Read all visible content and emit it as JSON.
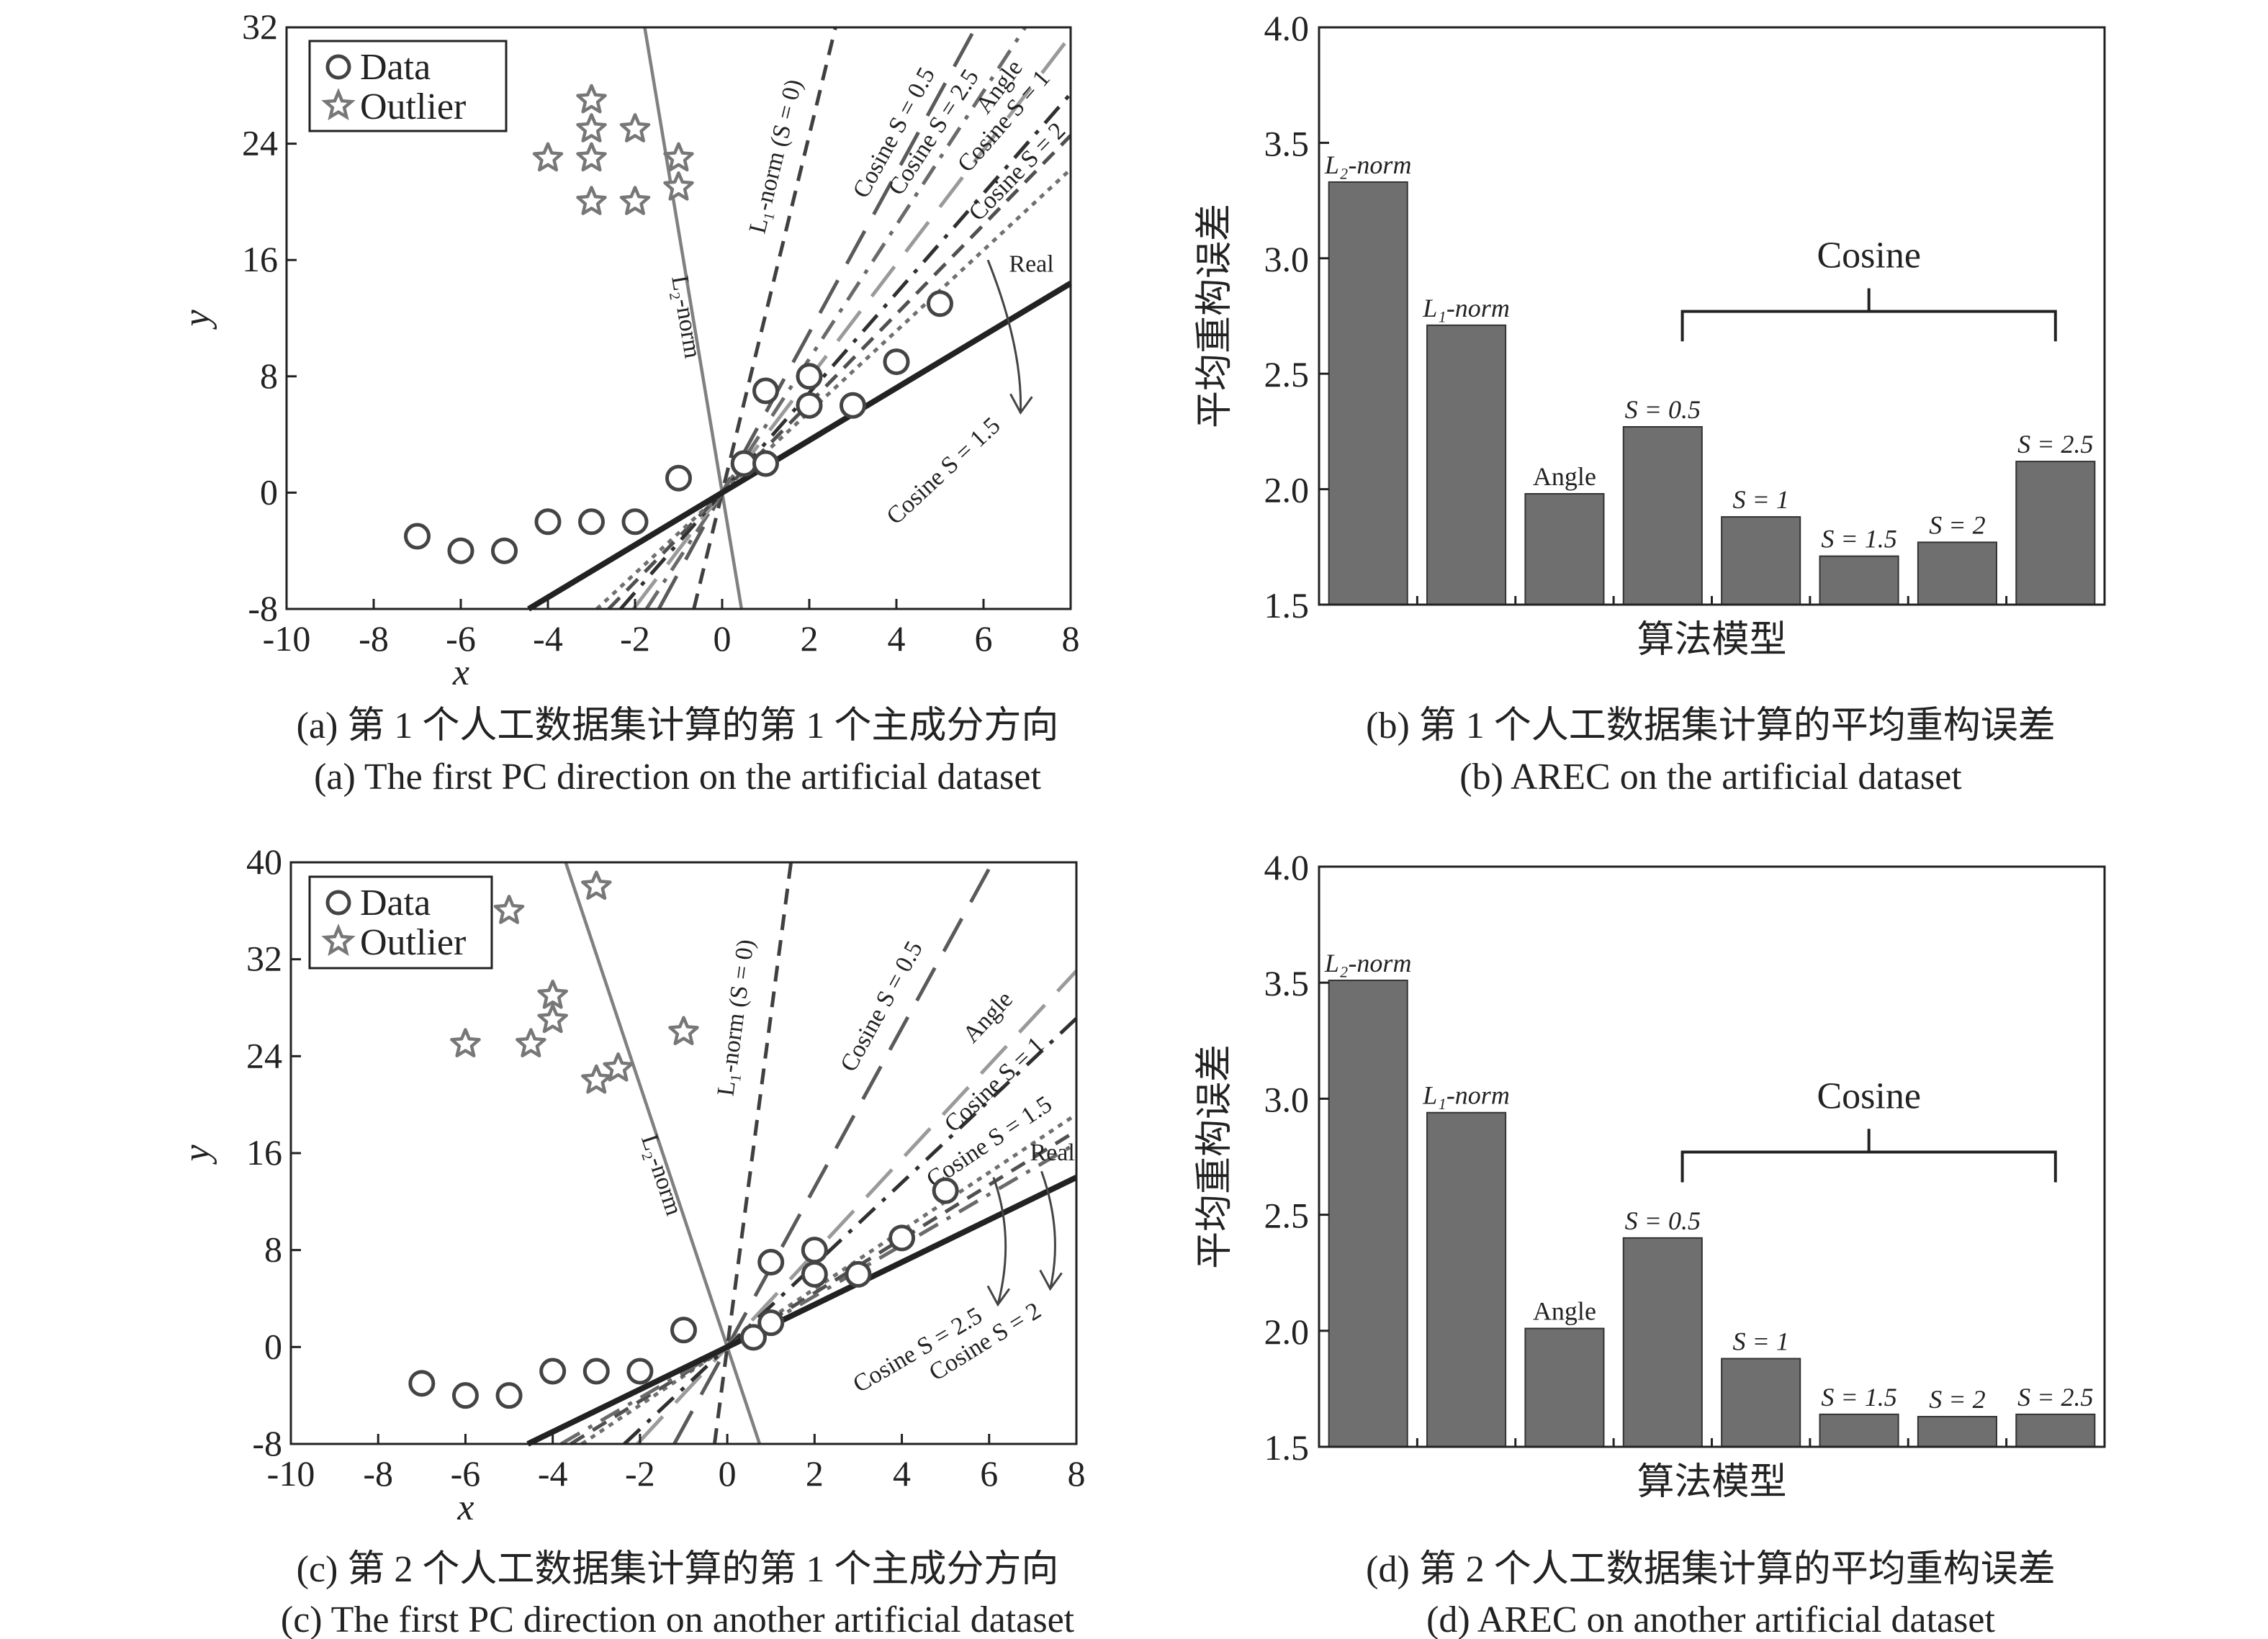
{
  "captions": {
    "a_cn": "(a) 第 1 个人工数据集计算的第 1 个主成分方向",
    "a_en": "(a) The first PC direction on the artificial dataset",
    "b_cn": "(b) 第 1 个人工数据集计算的平均重构误差",
    "b_en": "(b) AREC on the artificial dataset",
    "c_cn": "(c) 第 2 个人工数据集计算的第 1 个主成分方向",
    "c_en": "(c) The first PC direction on another artificial dataset",
    "d_cn": "(d) 第 2 个人工数据集计算的平均重构误差",
    "d_en": "(d) AREC on another artificial dataset"
  },
  "chart_data": [
    {
      "panel": "a",
      "type": "scatter",
      "xlabel": "x",
      "ylabel": "y",
      "xlim": [
        -10,
        8
      ],
      "ylim": [
        -8,
        32
      ],
      "xticks": [
        -10,
        -8,
        -6,
        -4,
        -2,
        0,
        2,
        4,
        6,
        8
      ],
      "yticks": [
        -8,
        0,
        8,
        16,
        24,
        32
      ],
      "grid": false,
      "legend": {
        "position": "top-left",
        "entries": [
          "Data",
          "Outlier"
        ]
      },
      "data": [
        [
          -7,
          -3
        ],
        [
          -6,
          -4
        ],
        [
          -5,
          -4
        ],
        [
          -4,
          -2
        ],
        [
          -3,
          -2
        ],
        [
          -2,
          -2
        ],
        [
          -1,
          1
        ],
        [
          0.5,
          2
        ],
        [
          1,
          2
        ],
        [
          1,
          7
        ],
        [
          2,
          8
        ],
        [
          2,
          6
        ],
        [
          3,
          6
        ],
        [
          4,
          9
        ],
        [
          5,
          13
        ]
      ],
      "outliers": [
        [
          -3,
          27
        ],
        [
          -3,
          25
        ],
        [
          -2,
          25
        ],
        [
          -4,
          23
        ],
        [
          -3,
          23
        ],
        [
          -1,
          23
        ],
        [
          -1,
          21
        ],
        [
          -3,
          20
        ],
        [
          -2,
          20
        ]
      ],
      "lines": [
        {
          "label": "L₂-norm",
          "slope": -18,
          "color": "#808080",
          "style": "solid"
        },
        {
          "label": "L₁-norm (S = 0)",
          "slope": 12.3,
          "color": "#404040",
          "style": "dash"
        },
        {
          "label": "Cosine S = 0.5",
          "slope": 5.5,
          "color": "#5a5a5a",
          "style": "longdash"
        },
        {
          "label": "Cosine S = 2.5",
          "slope": 4.6,
          "color": "#6a6a6a",
          "style": "dashdot"
        },
        {
          "label": "Angle",
          "slope": 3.93,
          "color": "#9a9a9a",
          "style": "longdash"
        },
        {
          "label": "Cosine S = 1",
          "slope": 3.43,
          "color": "#303030",
          "style": "dashdot"
        },
        {
          "label": "Cosine S = 2",
          "slope": 3.07,
          "color": "#505050",
          "style": "dash"
        },
        {
          "label": "Cosine S = 1.5",
          "slope": 2.78,
          "color": "#707070",
          "style": "dot"
        },
        {
          "label": "Real",
          "slope": 1.8,
          "color": "#222222",
          "style": "thick"
        }
      ]
    },
    {
      "panel": "b",
      "type": "bar",
      "xlabel": "算法模型",
      "ylabel": "平均重构误差",
      "ylim": [
        1.5,
        4.0
      ],
      "yticks": [
        "1.5",
        "2.0",
        "2.5",
        "3.0",
        "3.5",
        "4.0"
      ],
      "categories": [
        "L₂-norm",
        "L₁-norm",
        "Angle",
        "S = 0.5",
        "S = 1",
        "S = 1.5",
        "S = 2",
        "S = 2.5"
      ],
      "values": [
        3.33,
        2.71,
        1.98,
        2.27,
        1.88,
        1.71,
        1.77,
        2.12
      ],
      "group_label": "Cosine",
      "bar_color": "#6f6f6f"
    },
    {
      "panel": "c",
      "type": "scatter",
      "xlabel": "x",
      "ylabel": "y",
      "xlim": [
        -10,
        8
      ],
      "ylim": [
        -8,
        40
      ],
      "xticks": [
        -10,
        -8,
        -6,
        -4,
        -2,
        0,
        2,
        4,
        6,
        8
      ],
      "yticks": [
        -8,
        0,
        8,
        16,
        24,
        32,
        40
      ],
      "grid": false,
      "legend": {
        "position": "top-left",
        "entries": [
          "Data",
          "Outlier"
        ]
      },
      "data": [
        [
          -7,
          -3
        ],
        [
          -6,
          -4
        ],
        [
          -5,
          -4
        ],
        [
          -4,
          -2
        ],
        [
          -3,
          -2
        ],
        [
          -2,
          -2
        ],
        [
          -1,
          1.4
        ],
        [
          0.6,
          0.8
        ],
        [
          1,
          2
        ],
        [
          1,
          7
        ],
        [
          2,
          8
        ],
        [
          2,
          6
        ],
        [
          3,
          6
        ],
        [
          4,
          9
        ],
        [
          5,
          12.9
        ]
      ],
      "outliers": [
        [
          -3,
          38
        ],
        [
          -5,
          36
        ],
        [
          -4,
          29
        ],
        [
          -4,
          27
        ],
        [
          -6,
          25
        ],
        [
          -4.5,
          25
        ],
        [
          -1,
          26
        ],
        [
          -3,
          22
        ],
        [
          -2.5,
          23
        ]
      ],
      "lines": [
        {
          "label": "L₂-norm",
          "slope": -10.8,
          "color": "#808080",
          "style": "solid"
        },
        {
          "label": "L₁-norm (S = 0)",
          "slope": 27.4,
          "color": "#404040",
          "style": "dash"
        },
        {
          "label": "Cosine S = 0.5",
          "slope": 6.58,
          "color": "#5a5a5a",
          "style": "longdash"
        },
        {
          "label": "Angle",
          "slope": 3.88,
          "color": "#9a9a9a",
          "style": "longdash"
        },
        {
          "label": "Cosine S = 1",
          "slope": 3.39,
          "color": "#303030",
          "style": "dashdot"
        },
        {
          "label": "Cosine S = 1.5",
          "slope": 2.4,
          "color": "#707070",
          "style": "dot"
        },
        {
          "label": "Cosine S = 2",
          "slope": 2.23,
          "color": "#505050",
          "style": "dash"
        },
        {
          "label": "Cosine S = 2.5",
          "slope": 2.1,
          "color": "#6a6a6a",
          "style": "dashdot"
        },
        {
          "label": "Real",
          "slope": 1.75,
          "color": "#222222",
          "style": "thick"
        }
      ]
    },
    {
      "panel": "d",
      "type": "bar",
      "xlabel": "算法模型",
      "ylabel": "平均重构误差",
      "ylim": [
        1.5,
        4.0
      ],
      "yticks": [
        "1.5",
        "2.0",
        "2.5",
        "3.0",
        "3.5",
        "4.0"
      ],
      "categories": [
        "L₂-norm",
        "L₁-norm",
        "Angle",
        "S = 0.5",
        "S = 1",
        "S = 1.5",
        "S = 2",
        "S = 2.5"
      ],
      "values": [
        3.51,
        2.94,
        2.01,
        2.4,
        1.88,
        1.64,
        1.63,
        1.64
      ],
      "group_label": "Cosine",
      "bar_color": "#6f6f6f"
    }
  ]
}
